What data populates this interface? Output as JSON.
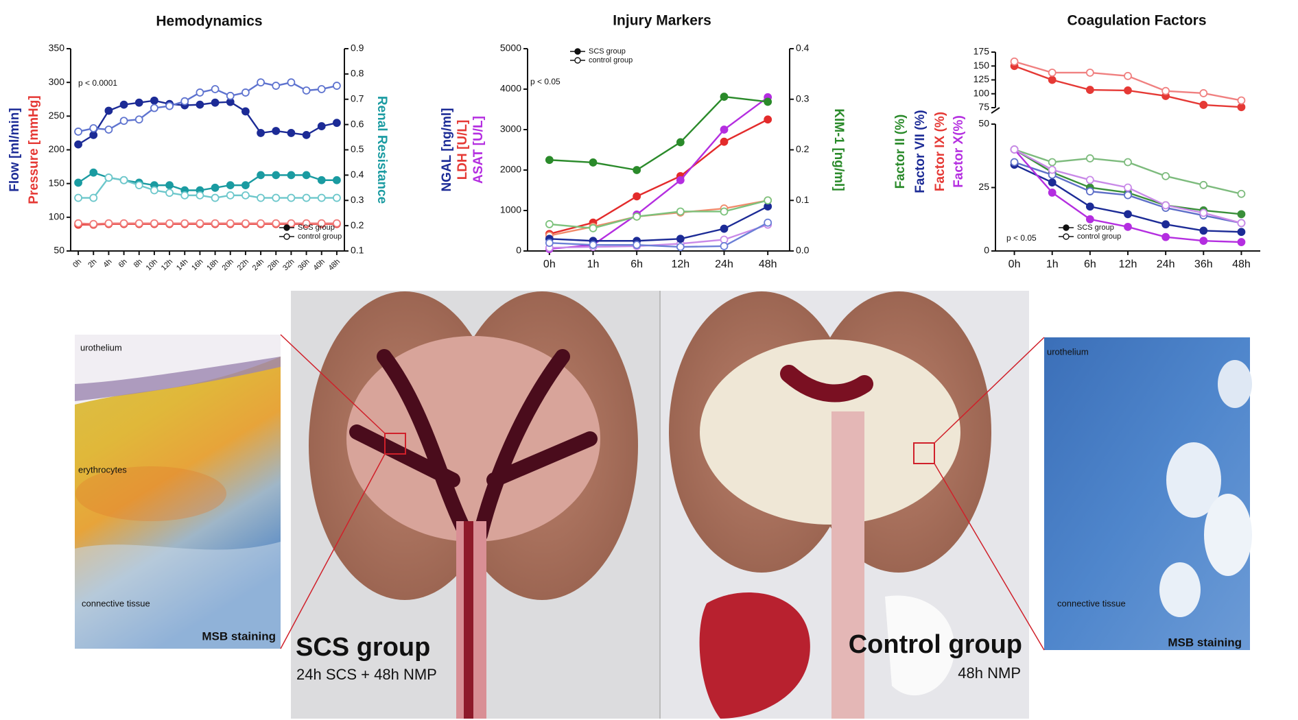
{
  "chart_data": [
    {
      "type": "line",
      "title": "Hemodynamics",
      "annotation": "p < 0.0001",
      "categories": [
        "0h",
        "2h",
        "4h",
        "6h",
        "8h",
        "10h",
        "12h",
        "14h",
        "16h",
        "18h",
        "20h",
        "22h",
        "24h",
        "28h",
        "32h",
        "36h",
        "40h",
        "48h"
      ],
      "x_label_rotate": true,
      "ylim": [
        50,
        350
      ],
      "yticks": [
        50,
        100,
        150,
        200,
        250,
        300,
        350
      ],
      "y2lim": [
        0.1,
        0.9
      ],
      "y2ticks": [
        0.1,
        0.2,
        0.3,
        0.4,
        0.5,
        0.6,
        0.7,
        0.8,
        0.9
      ],
      "y_labels": [
        {
          "text": "Flow [ml/min]",
          "color": "#1c2b96"
        },
        {
          "text": "Pressure [mmHg]",
          "color": "#e53935"
        }
      ],
      "y2_labels": [
        {
          "text": "Renal Resistance",
          "color": "#1a9ba1"
        }
      ],
      "legend": "bottom-right",
      "series": [
        {
          "name": "SCS group",
          "color": "#1c2b96",
          "marker": "filled",
          "axis": "y",
          "values": [
            208,
            222,
            258,
            267,
            270,
            273,
            268,
            266,
            267,
            270,
            271,
            257,
            225,
            228,
            225,
            222,
            235,
            240
          ]
        },
        {
          "name": "control group",
          "color": "#5e73cf",
          "marker": "open",
          "axis": "y",
          "values": [
            227,
            232,
            230,
            243,
            245,
            262,
            265,
            272,
            285,
            290,
            280,
            285,
            300,
            295,
            300,
            288,
            290,
            295
          ]
        },
        {
          "name": "SCS group",
          "color": "#e53935",
          "marker": "filled",
          "axis": "y",
          "values": [
            89,
            89,
            90,
            90,
            90,
            90,
            90,
            90,
            90,
            90,
            90,
            90,
            90,
            90,
            90,
            90,
            90,
            90
          ]
        },
        {
          "name": "control group",
          "color": "#f07a78",
          "marker": "open",
          "axis": "y",
          "values": [
            91,
            90,
            91,
            91,
            91,
            91,
            91,
            91,
            91,
            91,
            91,
            91,
            91,
            91,
            91,
            91,
            91,
            91
          ]
        },
        {
          "name": "SCS group",
          "color": "#1a9ba1",
          "marker": "filled",
          "axis": "y2",
          "values": [
            0.37,
            0.41,
            0.39,
            0.38,
            0.37,
            0.36,
            0.36,
            0.34,
            0.34,
            0.35,
            0.36,
            0.36,
            0.4,
            0.4,
            0.4,
            0.4,
            0.38,
            0.38
          ]
        },
        {
          "name": "control group",
          "color": "#6cc7cb",
          "marker": "open",
          "axis": "y2",
          "values": [
            0.31,
            0.31,
            0.39,
            0.38,
            0.36,
            0.34,
            0.33,
            0.32,
            0.32,
            0.31,
            0.32,
            0.32,
            0.31,
            0.31,
            0.31,
            0.31,
            0.31,
            0.31
          ]
        }
      ]
    },
    {
      "type": "line",
      "title": "Injury Markers",
      "annotation": "p < 0.05",
      "categories": [
        "0h",
        "1h",
        "6h",
        "12h",
        "24h",
        "48h"
      ],
      "x_label_rotate": false,
      "ylim": [
        0,
        5000
      ],
      "yticks": [
        0,
        1000,
        2000,
        3000,
        4000,
        5000
      ],
      "y2lim": [
        0,
        0.4
      ],
      "y2ticks": [
        {
          "value": 0,
          "label": "0.0"
        },
        0.1,
        0.2,
        0.3,
        0.4
      ],
      "y_labels": [
        {
          "text": "NGAL [ng/ml]",
          "color": "#1c2b96"
        },
        {
          "text": "LDH [U/L]",
          "color": "#e53935"
        },
        {
          "text": "ASAT [U/L]",
          "color": "#b42ee0"
        }
      ],
      "y2_labels": [
        {
          "text": "KIM-1 [ng/ml]",
          "color": "#2a8a2a"
        }
      ],
      "legend": "top-left",
      "series": [
        {
          "name": "SCS group",
          "color": "#e32b2b",
          "marker": "filled",
          "axis": "y",
          "values": [
            420,
            700,
            1350,
            1850,
            2700,
            3250
          ]
        },
        {
          "name": "control group",
          "color": "#f08a6a",
          "marker": "open",
          "axis": "y",
          "values": [
            380,
            600,
            850,
            950,
            1050,
            1250
          ]
        },
        {
          "name": "SCS group",
          "color": "#b42ee0",
          "marker": "filled",
          "axis": "y",
          "values": [
            50,
            150,
            900,
            1750,
            3000,
            3800
          ]
        },
        {
          "name": "control group",
          "color": "#c98ae8",
          "marker": "open",
          "axis": "y",
          "values": [
            80,
            100,
            120,
            180,
            280,
            650
          ]
        },
        {
          "name": "SCS group",
          "color": "#1c2b96",
          "marker": "filled",
          "axis": "y",
          "values": [
            300,
            250,
            250,
            300,
            550,
            1100
          ]
        },
        {
          "name": "control group",
          "color": "#6b7fd6",
          "marker": "open",
          "axis": "y",
          "values": [
            200,
            150,
            150,
            100,
            120,
            700
          ]
        },
        {
          "name": "SCS group",
          "color": "#2a8a2a",
          "marker": "filled",
          "axis": "y2",
          "values": [
            0.18,
            0.175,
            0.16,
            0.215,
            0.305,
            0.295
          ]
        },
        {
          "name": "control group",
          "color": "#7cc27c",
          "marker": "open",
          "axis": "y2",
          "values": [
            0.053,
            0.045,
            0.068,
            0.078,
            0.078,
            0.1
          ]
        }
      ]
    },
    {
      "type": "line",
      "title": "Coagulation Factors",
      "annotation": "p < 0.05",
      "categories": [
        "0h",
        "1h",
        "6h",
        "12h",
        "24h",
        "36h",
        "48h"
      ],
      "x_label_rotate": false,
      "ysegments": [
        {
          "ylim": [
            0,
            50
          ],
          "yticks": [
            0,
            25,
            50
          ]
        },
        {
          "ylim": [
            75,
            175
          ],
          "yticks": [
            75,
            100,
            125,
            150,
            175
          ]
        }
      ],
      "y_labels": [
        {
          "text": "Factor  II (%)",
          "color": "#2a8a2a"
        },
        {
          "text": "Factor  VII (%)",
          "color": "#1c2b96"
        },
        {
          "text": "Factor IX (%)",
          "color": "#e53935"
        },
        {
          "text": "Factor  X(%)",
          "color": "#b42ee0"
        }
      ],
      "legend": "bottom-left",
      "series": [
        {
          "name": "SCS group",
          "color": "#e53935",
          "marker": "filled",
          "axis": "y",
          "values": [
            150,
            125,
            107,
            106,
            96,
            80,
            76
          ]
        },
        {
          "name": "control group",
          "color": "#f08080",
          "marker": "open",
          "axis": "y",
          "values": [
            158,
            138,
            138,
            132,
            105,
            101,
            88
          ]
        },
        {
          "name": "SCS group",
          "color": "#3a8f3a",
          "marker": "filled",
          "axis": "y",
          "values": [
            40,
            31,
            25,
            23,
            18,
            16,
            14.5
          ]
        },
        {
          "name": "control group",
          "color": "#7dbb7d",
          "marker": "open",
          "axis": "y",
          "values": [
            40,
            35,
            36.5,
            35,
            29.5,
            26,
            22.5
          ]
        },
        {
          "name": "SCS group",
          "color": "#1c2b96",
          "marker": "filled",
          "axis": "y",
          "values": [
            34,
            27,
            17.5,
            14.5,
            10.5,
            8,
            7.5
          ]
        },
        {
          "name": "control group",
          "color": "#5e6fc8",
          "marker": "open",
          "axis": "y",
          "values": [
            35,
            30,
            23.5,
            22,
            17,
            14,
            11
          ]
        },
        {
          "name": "SCS group",
          "color": "#b42ee0",
          "marker": "filled",
          "axis": "y",
          "values": [
            40,
            23,
            12.5,
            9.5,
            5.5,
            4,
            3.5
          ]
        },
        {
          "name": "control group",
          "color": "#c98ae8",
          "marker": "open",
          "axis": "y",
          "values": [
            40,
            32,
            28,
            25,
            18,
            15,
            11
          ]
        }
      ]
    }
  ],
  "photos": {
    "left_histology": {
      "labels": [
        "urothelium",
        "erythrocytes",
        "connective tissue"
      ],
      "stain": "MSB staining"
    },
    "scs_kidney": {
      "title": "SCS group",
      "subtitle": "24h SCS + 48h NMP"
    },
    "control_kidney": {
      "title": "Control group",
      "subtitle": "48h NMP"
    },
    "right_histology": {
      "labels": [
        "urothelium",
        "connective tissue"
      ],
      "stain": "MSB staining"
    }
  }
}
